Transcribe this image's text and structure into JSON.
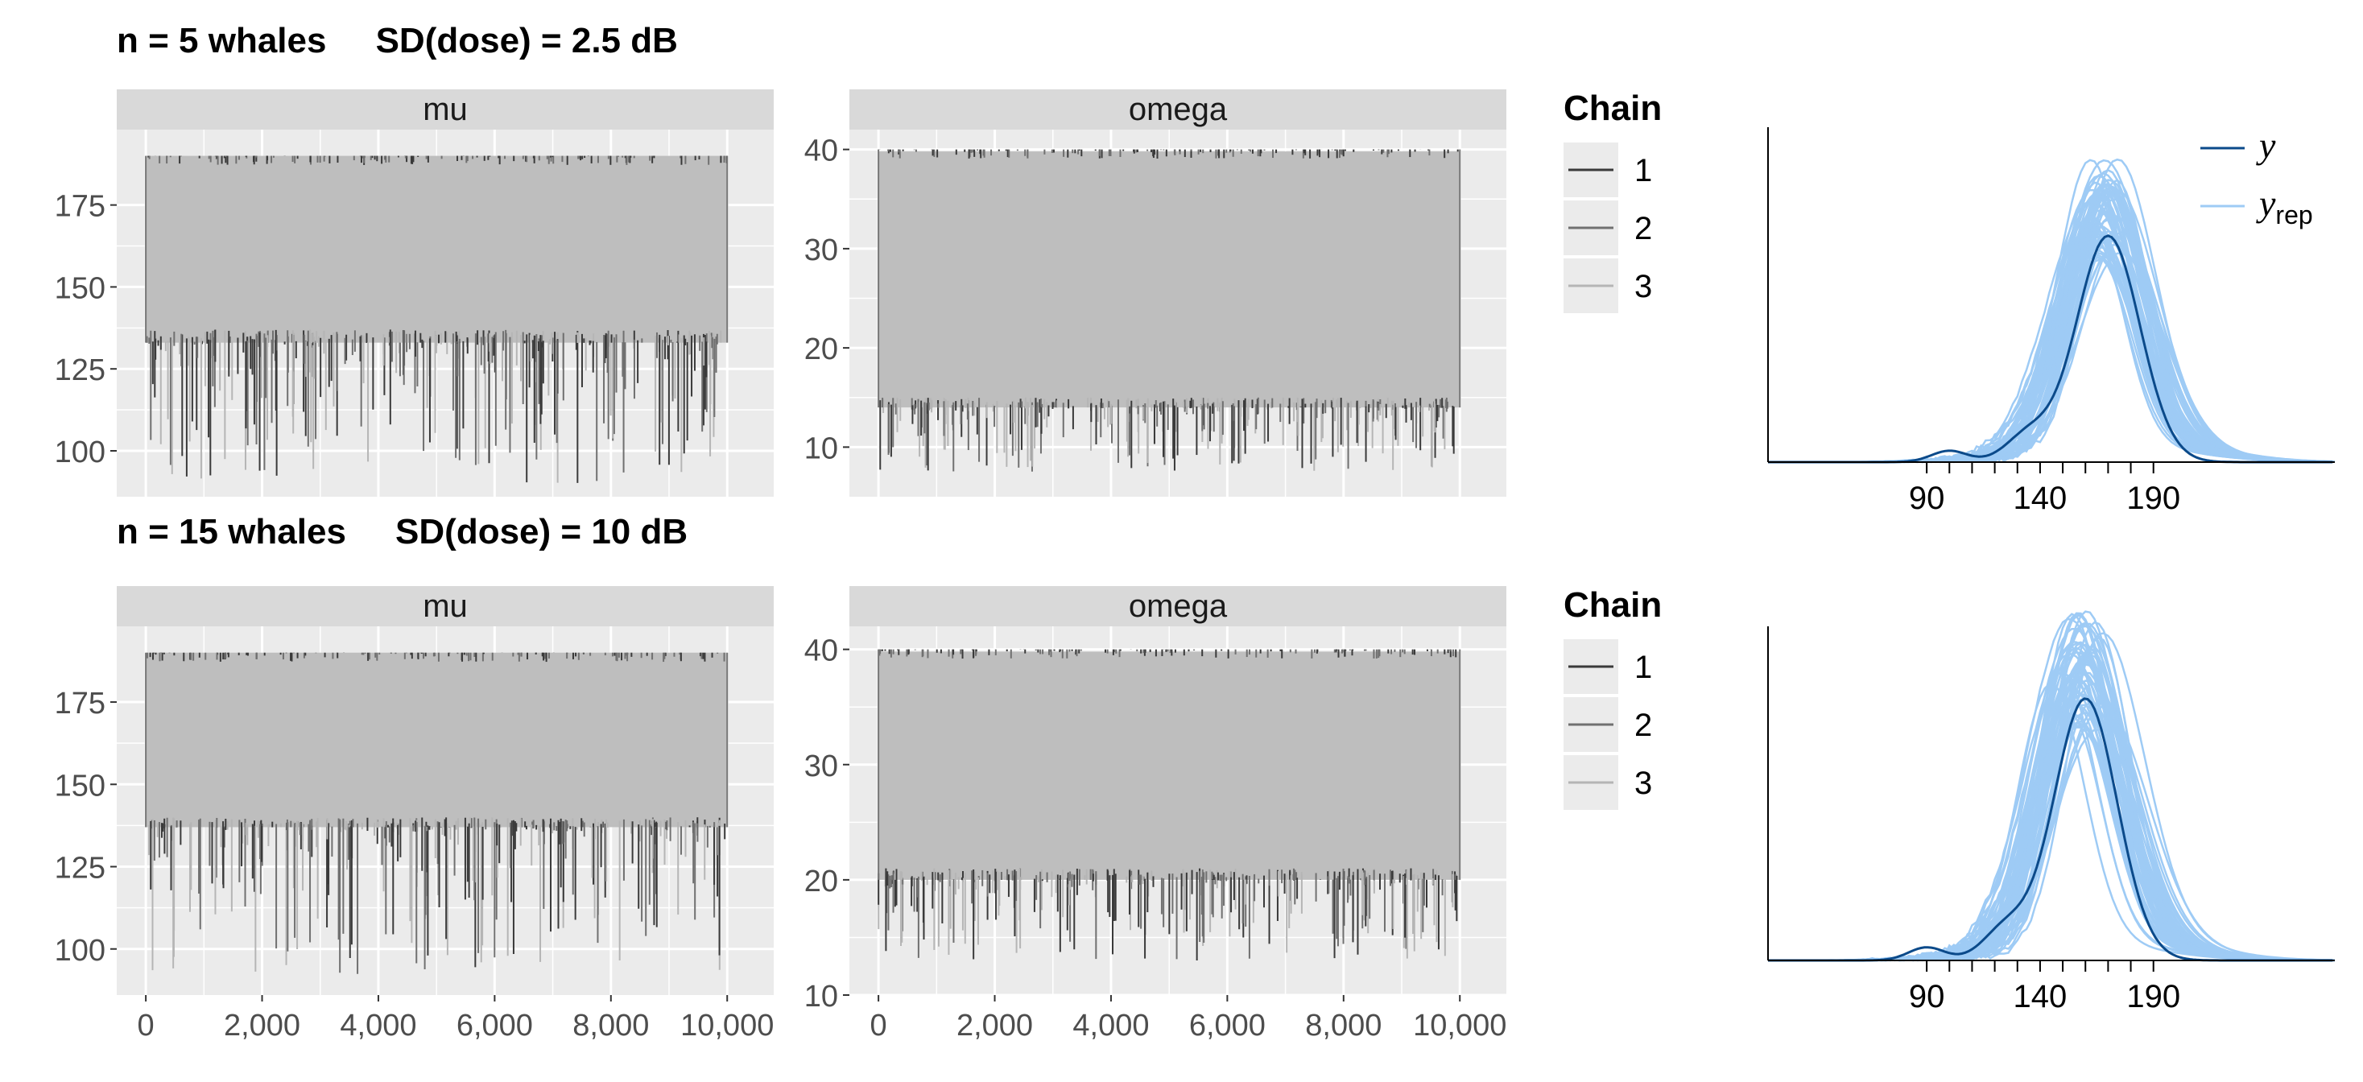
{
  "rows": [
    {
      "title": "n = 5 whales     SD(dose) = 2.5 dB",
      "trace": [
        {
          "strip": "mu",
          "ylim": [
            86,
            198
          ],
          "yticks": [
            100,
            125,
            150,
            175
          ],
          "bands": [
            {
              "lo": 133,
              "hi": 190,
              "color": "#bebebe"
            }
          ],
          "spikes_low": {
            "min": 90,
            "top": 137
          },
          "spikes_high": {
            "max": 190
          }
        },
        {
          "strip": "omega",
          "ylim": [
            5,
            42
          ],
          "yticks": [
            10,
            20,
            30,
            40
          ],
          "bands": [
            {
              "lo": 14,
              "hi": 39.8,
              "color": "#bebebe"
            }
          ],
          "spikes_low": {
            "min": 7.5,
            "top": 15
          },
          "spikes_high": {
            "max": 40
          }
        }
      ],
      "legend": {
        "title": "Chain",
        "entries": [
          "1",
          "2",
          "3"
        ]
      },
      "ppc": {
        "peak_x": 170,
        "peak_y": 0.0125,
        "ymax": 0.0185
      }
    },
    {
      "title": "n = 15 whales     SD(dose) = 10 dB",
      "trace": [
        {
          "strip": "mu",
          "ylim": [
            86,
            198
          ],
          "yticks": [
            100,
            125,
            150,
            175
          ],
          "bands": [
            {
              "lo": 137,
              "hi": 190,
              "color": "#bebebe"
            }
          ],
          "spikes_low": {
            "min": 92,
            "top": 140
          },
          "spikes_high": {
            "max": 190
          }
        },
        {
          "strip": "omega",
          "ylim": [
            10,
            42
          ],
          "yticks": [
            10,
            20,
            30,
            40
          ],
          "bands": [
            {
              "lo": 20,
              "hi": 39.8,
              "color": "#bebebe"
            }
          ],
          "spikes_low": {
            "min": 13,
            "top": 21
          },
          "spikes_high": {
            "max": 40
          }
        }
      ],
      "legend": {
        "title": "Chain",
        "entries": [
          "1",
          "2",
          "3"
        ]
      },
      "ppc": {
        "peak_x": 160,
        "peak_y": 0.0145,
        "ymax": 0.0185
      }
    }
  ],
  "trace_x": {
    "xlim": [
      -500,
      10800
    ],
    "ticks": [
      0,
      2000,
      4000,
      6000,
      8000,
      10000
    ],
    "tick_labels": [
      "0",
      "2,000",
      "4,000",
      "6,000",
      "8,000",
      "10,000"
    ]
  },
  "ppc_axis": {
    "xlim": [
      20,
      270
    ],
    "ticks": [
      90,
      140,
      190
    ],
    "tick_labels": [
      "90",
      "140",
      "190"
    ],
    "rug_ticks": [
      90,
      100,
      110,
      120,
      130,
      140,
      150,
      160,
      170,
      180,
      190
    ]
  },
  "ppc_legend": {
    "y_label": "y",
    "yrep_label": "y",
    "yrep_subscript": "rep"
  },
  "chain_colors": [
    "#3a3a3a",
    "#707070",
    "#b5b5b5"
  ],
  "colors": {
    "panel_bg": "#ebebeb",
    "strip_bg": "#d9d9d9",
    "grid": "#ffffff",
    "y_line": "#0b4a8a",
    "yrep_line": "#9ecbf5"
  },
  "chart_data": [
    {
      "type": "line",
      "panel": "mu",
      "row": 1,
      "xlabel": "",
      "ylabel": "",
      "series": [
        {
          "name": "1"
        },
        {
          "name": "2"
        },
        {
          "name": "3"
        }
      ],
      "x_range": [
        0,
        10000
      ],
      "ylim": [
        86,
        198
      ],
      "typical_range": [
        133,
        190
      ],
      "extreme_min": 90
    },
    {
      "type": "line",
      "panel": "omega",
      "row": 1,
      "series": [
        {
          "name": "1"
        },
        {
          "name": "2"
        },
        {
          "name": "3"
        }
      ],
      "x_range": [
        0,
        10000
      ],
      "ylim": [
        5,
        42
      ],
      "typical_range": [
        14,
        39.8
      ],
      "extreme_min": 7.5
    },
    {
      "type": "area",
      "panel": "ppc",
      "row": 1,
      "series": [
        {
          "name": "y"
        },
        {
          "name": "yrep"
        }
      ],
      "x_ticks": [
        90,
        140,
        190
      ],
      "y_mode": 170
    },
    {
      "type": "line",
      "panel": "mu",
      "row": 2,
      "series": [
        {
          "name": "1"
        },
        {
          "name": "2"
        },
        {
          "name": "3"
        }
      ],
      "x_range": [
        0,
        10000
      ],
      "ylim": [
        86,
        198
      ],
      "typical_range": [
        137,
        190
      ],
      "extreme_min": 92
    },
    {
      "type": "line",
      "panel": "omega",
      "row": 2,
      "series": [
        {
          "name": "1"
        },
        {
          "name": "2"
        },
        {
          "name": "3"
        }
      ],
      "x_range": [
        0,
        10000
      ],
      "ylim": [
        10,
        42
      ],
      "typical_range": [
        20,
        39.8
      ],
      "extreme_min": 13
    },
    {
      "type": "area",
      "panel": "ppc",
      "row": 2,
      "series": [
        {
          "name": "y"
        },
        {
          "name": "yrep"
        }
      ],
      "x_ticks": [
        90,
        140,
        190
      ],
      "y_mode": 160
    }
  ]
}
